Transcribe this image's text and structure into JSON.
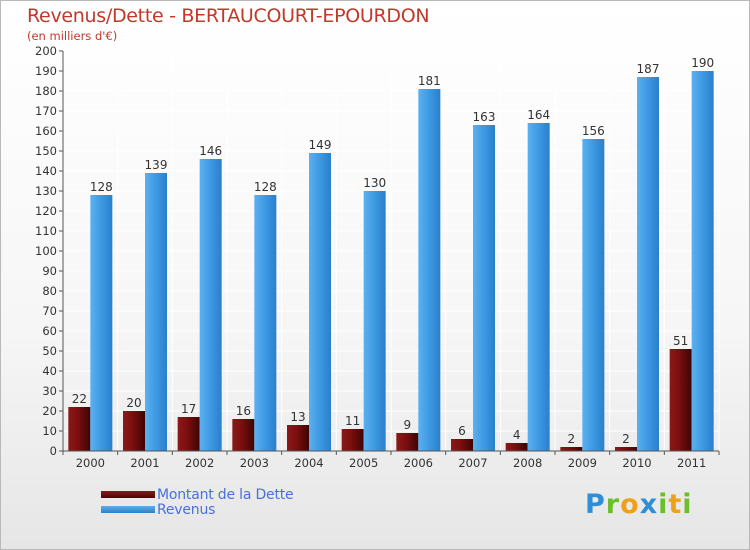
{
  "header": {
    "title": "Revenus/Dette - BERTAUCOURT-EPOURDON",
    "subtitle": "(en milliers d'€)"
  },
  "legend": {
    "debt_label": "Montant de la Dette",
    "revenue_label": "Revenus"
  },
  "logo": {
    "text": "Proxiti",
    "letters": [
      {
        "char": "P",
        "color": "#2e8fd8"
      },
      {
        "char": "r",
        "color": "#6cbf2c"
      },
      {
        "char": "o",
        "color": "#f0a11a"
      },
      {
        "char": "x",
        "color": "#2e8fd8"
      },
      {
        "char": "i",
        "color": "#6cbf2c"
      },
      {
        "char": "t",
        "color": "#f0a11a"
      },
      {
        "char": "i",
        "color": "#6cbf2c"
      }
    ]
  },
  "colors": {
    "debt": "#7a0e0e",
    "revenue": "#3d99e3",
    "title": "#c0392b"
  },
  "chart_data": {
    "type": "bar",
    "title": "Revenus/Dette - BERTAUCOURT-EPOURDON",
    "ylabel": "(en milliers d'€)",
    "xlabel": "",
    "categories": [
      "2000",
      "2001",
      "2002",
      "2003",
      "2004",
      "2005",
      "2006",
      "2007",
      "2008",
      "2009",
      "2010",
      "2011"
    ],
    "series": [
      {
        "name": "Montant de la Dette",
        "values": [
          22,
          20,
          17,
          16,
          13,
          11,
          9,
          6,
          4,
          2,
          2,
          51
        ]
      },
      {
        "name": "Revenus",
        "values": [
          128,
          139,
          146,
          128,
          149,
          130,
          181,
          163,
          164,
          156,
          187,
          190
        ]
      }
    ],
    "ylim": [
      0,
      200
    ],
    "yticks": [
      0,
      10,
      20,
      30,
      40,
      50,
      60,
      70,
      80,
      90,
      100,
      110,
      120,
      130,
      140,
      150,
      160,
      170,
      180,
      190,
      200
    ],
    "grid": true,
    "legend_position": "bottom-left"
  }
}
